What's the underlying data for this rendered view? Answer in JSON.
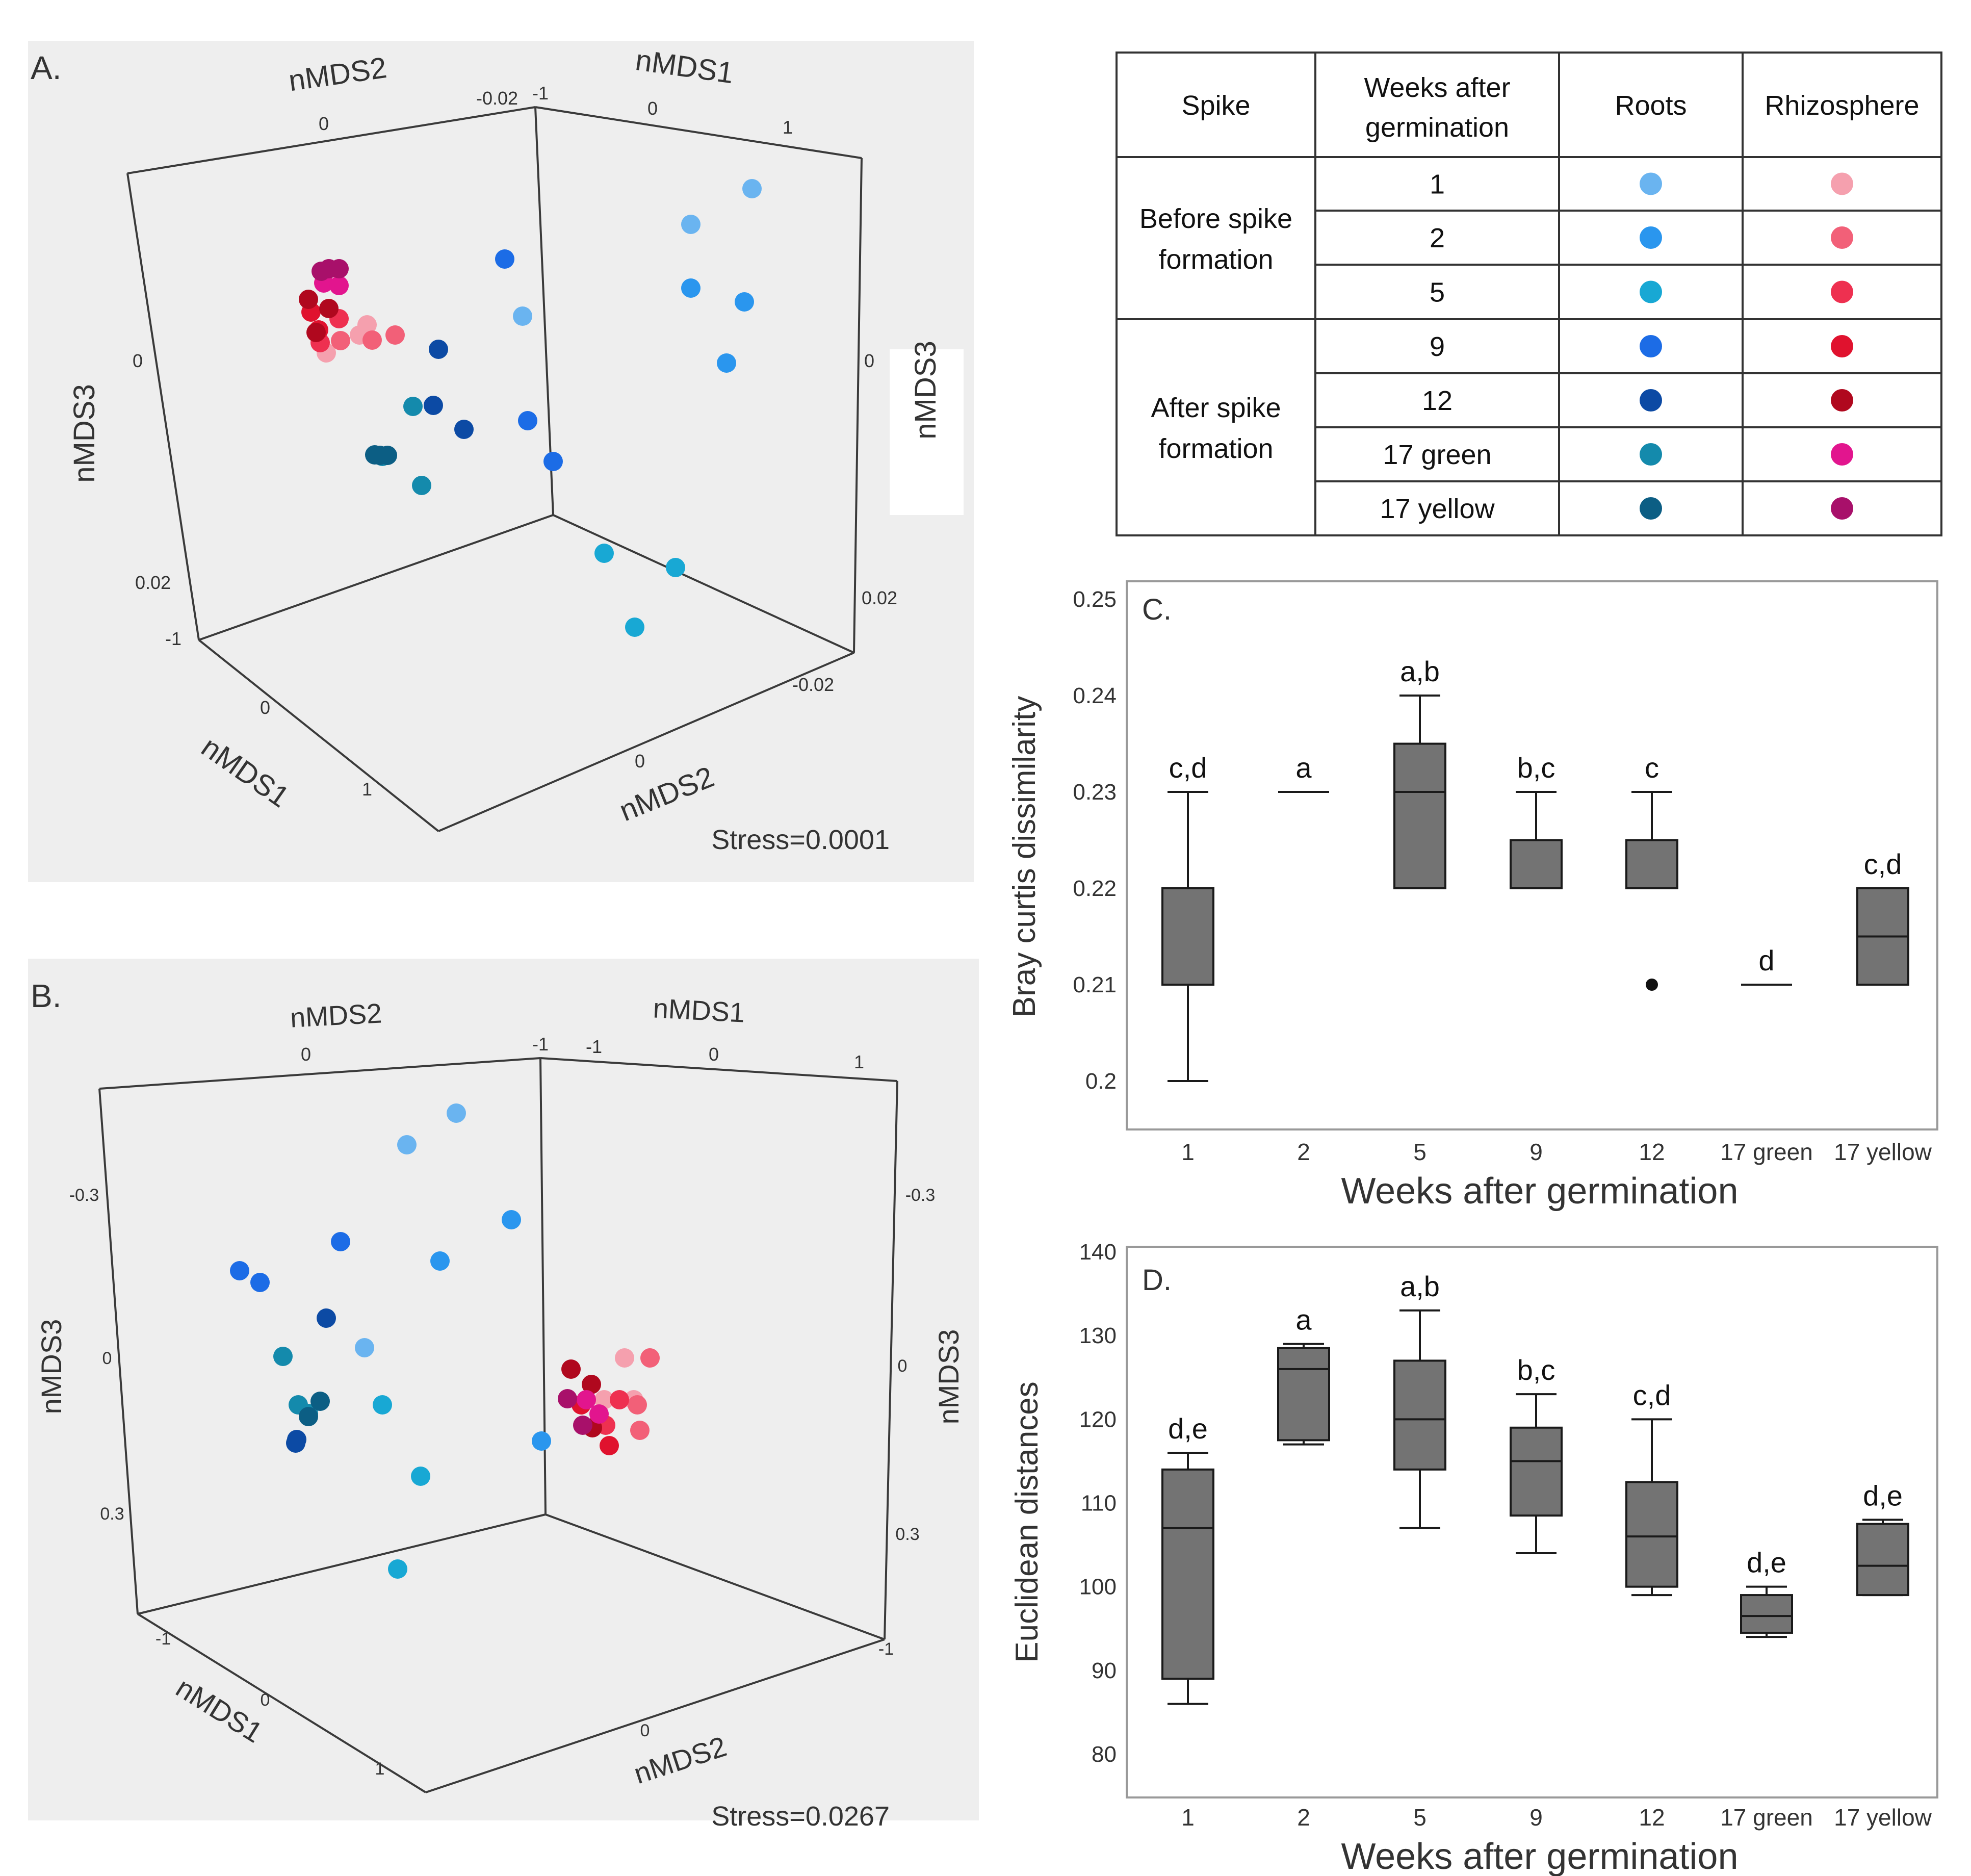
{
  "chart_data": [
    {
      "id": "A",
      "type": "scatter",
      "panel_label": "A.",
      "title": "",
      "stress_text": "Stress=0.0001",
      "axis_labels": {
        "back_left_top": "nMDS2",
        "back_right_top": "nMDS1",
        "left_side": "nMDS3",
        "right_side": "nMDS3",
        "floor_left": "nMDS1",
        "floor_right": "nMDS2"
      },
      "ticks": {
        "back_left_top": [
          "0",
          "-0.02"
        ],
        "back_right_top": [
          "-1",
          "0",
          "1"
        ],
        "left_side": [
          "0",
          "0.02"
        ],
        "right_side": [
          "0",
          "0.02"
        ],
        "floor_left": [
          "-1",
          "0",
          "1"
        ],
        "floor_right": [
          "0",
          "-0.02"
        ]
      },
      "points": [
        {
          "group": "roots",
          "week": "1"
        },
        {
          "group": "roots",
          "week": "1"
        },
        {
          "group": "roots",
          "week": "1"
        },
        {
          "group": "roots",
          "week": "2"
        },
        {
          "group": "roots",
          "week": "2"
        },
        {
          "group": "roots",
          "week": "2"
        },
        {
          "group": "roots",
          "week": "5"
        },
        {
          "group": "roots",
          "week": "5"
        },
        {
          "group": "roots",
          "week": "5"
        },
        {
          "group": "roots",
          "week": "9"
        },
        {
          "group": "roots",
          "week": "9"
        },
        {
          "group": "roots",
          "week": "9"
        },
        {
          "group": "roots",
          "week": "12"
        },
        {
          "group": "roots",
          "week": "12"
        },
        {
          "group": "roots",
          "week": "12"
        },
        {
          "group": "roots",
          "week": "17 green"
        },
        {
          "group": "roots",
          "week": "17 green"
        },
        {
          "group": "roots",
          "week": "17 green"
        },
        {
          "group": "roots",
          "week": "17 yellow"
        },
        {
          "group": "roots",
          "week": "17 yellow"
        },
        {
          "group": "roots",
          "week": "17 yellow"
        },
        {
          "group": "rhizosphere",
          "week": "1"
        },
        {
          "group": "rhizosphere",
          "week": "1"
        },
        {
          "group": "rhizosphere",
          "week": "1"
        },
        {
          "group": "rhizosphere",
          "week": "2"
        },
        {
          "group": "rhizosphere",
          "week": "2"
        },
        {
          "group": "rhizosphere",
          "week": "2"
        },
        {
          "group": "rhizosphere",
          "week": "5"
        },
        {
          "group": "rhizosphere",
          "week": "5"
        },
        {
          "group": "rhizosphere",
          "week": "9"
        },
        {
          "group": "rhizosphere",
          "week": "9"
        },
        {
          "group": "rhizosphere",
          "week": "12"
        },
        {
          "group": "rhizosphere",
          "week": "12"
        },
        {
          "group": "rhizosphere",
          "week": "12"
        },
        {
          "group": "rhizosphere",
          "week": "17 green"
        },
        {
          "group": "rhizosphere",
          "week": "17 green"
        },
        {
          "group": "rhizosphere",
          "week": "17 yellow"
        },
        {
          "group": "rhizosphere",
          "week": "17 yellow"
        },
        {
          "group": "rhizosphere",
          "week": "17 yellow"
        }
      ]
    },
    {
      "id": "B",
      "type": "scatter",
      "panel_label": "B.",
      "title": "",
      "stress_text": "Stress=0.0267",
      "axis_labels": {
        "back_left_top": "nMDS2",
        "back_right_top": "nMDS1",
        "left_side": "nMDS3",
        "right_side": "nMDS3",
        "floor_left": "nMDS1",
        "floor_right": "nMDS2"
      },
      "ticks": {
        "back_left_top": [
          "0",
          "-1"
        ],
        "back_right_top": [
          "-1",
          "0",
          "1"
        ],
        "left_side": [
          "-0.3",
          "0",
          "0.3"
        ],
        "right_side": [
          "-0.3",
          "0",
          "0.3"
        ],
        "floor_left": [
          "-1",
          "0",
          "1"
        ],
        "floor_right": [
          "0",
          "-1"
        ]
      },
      "points": [
        {
          "group": "roots",
          "week": "1"
        },
        {
          "group": "roots",
          "week": "1"
        },
        {
          "group": "roots",
          "week": "1"
        },
        {
          "group": "roots",
          "week": "2"
        },
        {
          "group": "roots",
          "week": "2"
        },
        {
          "group": "roots",
          "week": "2"
        },
        {
          "group": "roots",
          "week": "5"
        },
        {
          "group": "roots",
          "week": "5"
        },
        {
          "group": "roots",
          "week": "5"
        },
        {
          "group": "roots",
          "week": "9"
        },
        {
          "group": "roots",
          "week": "9"
        },
        {
          "group": "roots",
          "week": "9"
        },
        {
          "group": "roots",
          "week": "12"
        },
        {
          "group": "roots",
          "week": "12"
        },
        {
          "group": "roots",
          "week": "12"
        },
        {
          "group": "roots",
          "week": "17 green"
        },
        {
          "group": "roots",
          "week": "17 green"
        },
        {
          "group": "roots",
          "week": "17 green"
        },
        {
          "group": "roots",
          "week": "17 yellow"
        },
        {
          "group": "roots",
          "week": "17 yellow"
        },
        {
          "group": "rhizosphere",
          "week": "1"
        },
        {
          "group": "rhizosphere",
          "week": "1"
        },
        {
          "group": "rhizosphere",
          "week": "1"
        },
        {
          "group": "rhizosphere",
          "week": "2"
        },
        {
          "group": "rhizosphere",
          "week": "2"
        },
        {
          "group": "rhizosphere",
          "week": "2"
        },
        {
          "group": "rhizosphere",
          "week": "5"
        },
        {
          "group": "rhizosphere",
          "week": "5"
        },
        {
          "group": "rhizosphere",
          "week": "9"
        },
        {
          "group": "rhizosphere",
          "week": "9"
        },
        {
          "group": "rhizosphere",
          "week": "12"
        },
        {
          "group": "rhizosphere",
          "week": "12"
        },
        {
          "group": "rhizosphere",
          "week": "12"
        },
        {
          "group": "rhizosphere",
          "week": "17 green"
        },
        {
          "group": "rhizosphere",
          "week": "17 green"
        },
        {
          "group": "rhizosphere",
          "week": "17 yellow"
        },
        {
          "group": "rhizosphere",
          "week": "17 yellow"
        }
      ]
    },
    {
      "id": "C",
      "type": "box",
      "panel_label": "C.",
      "title": "",
      "xlabel": "Weeks after germination",
      "ylabel": "Bray curtis dissimilarity",
      "ylim": [
        0.197,
        0.251
      ],
      "yticks": [
        0.2,
        0.21,
        0.22,
        0.23,
        0.24,
        0.25
      ],
      "ytick_labels": [
        "0.2",
        "0.21",
        "0.22",
        "0.23",
        "0.24",
        "0.25"
      ],
      "categories": [
        "1",
        "2",
        "5",
        "9",
        "12",
        "17 green",
        "17 yellow"
      ],
      "boxes": [
        {
          "min": 0.2,
          "q1": 0.21,
          "median": 0.22,
          "q3": 0.22,
          "max": 0.23,
          "letters": "c,d",
          "outliers": []
        },
        {
          "min": 0.23,
          "q1": 0.23,
          "median": 0.23,
          "q3": 0.23,
          "max": 0.23,
          "letters": "a",
          "outliers": []
        },
        {
          "min": 0.22,
          "q1": 0.22,
          "median": 0.23,
          "q3": 0.235,
          "max": 0.24,
          "letters": "a,b",
          "outliers": []
        },
        {
          "min": 0.22,
          "q1": 0.22,
          "median": 0.225,
          "q3": 0.225,
          "max": 0.23,
          "letters": "b,c",
          "outliers": []
        },
        {
          "min": 0.22,
          "q1": 0.22,
          "median": 0.225,
          "q3": 0.225,
          "max": 0.23,
          "letters": "c",
          "outliers": [
            0.21
          ]
        },
        {
          "min": 0.21,
          "q1": 0.21,
          "median": 0.21,
          "q3": 0.21,
          "max": 0.21,
          "letters": "d",
          "outliers": []
        },
        {
          "min": 0.21,
          "q1": 0.21,
          "median": 0.215,
          "q3": 0.22,
          "max": 0.22,
          "letters": "c,d",
          "outliers": []
        }
      ]
    },
    {
      "id": "D",
      "type": "box",
      "panel_label": "D.",
      "title": "",
      "xlabel": "Weeks after germination",
      "ylabel": "Euclidean distances",
      "ylim": [
        75,
        140
      ],
      "yticks": [
        80,
        90,
        100,
        110,
        120,
        130,
        140
      ],
      "ytick_labels": [
        "80",
        "90",
        "100",
        "110",
        "120",
        "130",
        "140"
      ],
      "categories": [
        "1",
        "2",
        "5",
        "9",
        "12",
        "17 green",
        "17 yellow"
      ],
      "boxes": [
        {
          "min": 86,
          "q1": 89,
          "median": 107,
          "q3": 114,
          "max": 116,
          "letters": "d,e",
          "outliers": []
        },
        {
          "min": 117,
          "q1": 117.5,
          "median": 126,
          "q3": 128.5,
          "max": 129,
          "letters": "a",
          "outliers": []
        },
        {
          "min": 107,
          "q1": 114,
          "median": 120,
          "q3": 127,
          "max": 133,
          "letters": "a,b",
          "outliers": []
        },
        {
          "min": 104,
          "q1": 108.5,
          "median": 115,
          "q3": 119,
          "max": 123,
          "letters": "b,c",
          "outliers": []
        },
        {
          "min": 99,
          "q1": 100,
          "median": 106,
          "q3": 112.5,
          "max": 120,
          "letters": "c,d",
          "outliers": []
        },
        {
          "min": 94,
          "q1": 94.5,
          "median": 96.5,
          "q3": 99,
          "max": 100,
          "letters": "d,e",
          "outliers": []
        },
        {
          "min": 99,
          "q1": 99,
          "median": 102.5,
          "q3": 107.5,
          "max": 108,
          "letters": "d,e",
          "outliers": []
        }
      ]
    }
  ],
  "legend_table": {
    "headers": {
      "spike": "Spike",
      "weeks": "Weeks after germination",
      "roots": "Roots",
      "rhizosphere": "Rhizosphere"
    },
    "groups": [
      {
        "label": "Before spike formation",
        "rows": [
          "1",
          "2",
          "5"
        ]
      },
      {
        "label": "After spike formation",
        "rows": [
          "9",
          "12",
          "17 green",
          "17 yellow"
        ]
      }
    ],
    "rows": [
      {
        "week": "1",
        "roots_color": "#6ab4f0",
        "rhizo_color": "#f5a0ae"
      },
      {
        "week": "2",
        "roots_color": "#2a96ee",
        "rhizo_color": "#f26078"
      },
      {
        "week": "5",
        "roots_color": "#18a8d4",
        "rhizo_color": "#ee3050"
      },
      {
        "week": "9",
        "roots_color": "#1c6ce6",
        "rhizo_color": "#e0122e"
      },
      {
        "week": "12",
        "roots_color": "#0c4aa4",
        "rhizo_color": "#b0081e"
      },
      {
        "week": "17 green",
        "roots_color": "#148aac",
        "rhizo_color": "#e2158e"
      },
      {
        "week": "17 yellow",
        "roots_color": "#0c5e84",
        "rhizo_color": "#a8106a"
      }
    ]
  },
  "colors": {
    "panel_bg": "#eeeeee",
    "box_fill": "#737373",
    "box_stroke": "#1a1a1a"
  }
}
